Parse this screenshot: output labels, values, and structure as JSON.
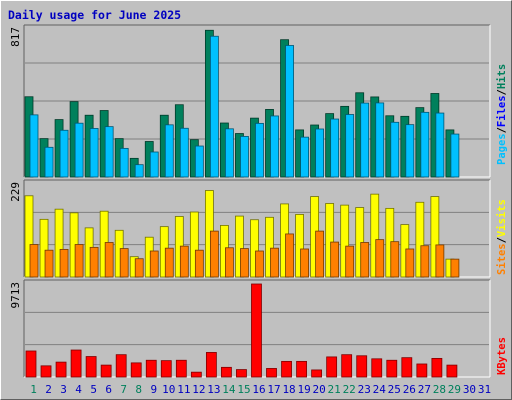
{
  "title": "Daily usage for June 2025",
  "colors": {
    "title": "#0000c0",
    "hits": "#00805c",
    "files": "#0000ff",
    "pages": "#00c0ff",
    "visits": "#ffff00",
    "sites": "#ff8000",
    "kbytes": "#ff0000",
    "weekend_label": "#00805c",
    "weekday_label": "#0000c0",
    "grid": "#808080"
  },
  "chart_data": [
    {
      "type": "bar",
      "panel": "hits",
      "ymax_label": "817",
      "ymax": 817,
      "legend": [
        {
          "name": "Pages",
          "color": "#00c0ff"
        },
        {
          "sep": "/"
        },
        {
          "name": "Files",
          "color": "#0000ff"
        },
        {
          "sep": "/"
        },
        {
          "name": "Hits",
          "color": "#00805c"
        }
      ],
      "categories": [
        "1",
        "2",
        "3",
        "4",
        "5",
        "6",
        "7",
        "8",
        "9",
        "10",
        "11",
        "12",
        "13",
        "14",
        "15",
        "16",
        "17",
        "18",
        "19",
        "20",
        "21",
        "22",
        "23",
        "24",
        "25",
        "26",
        "27",
        "28",
        "29",
        "30",
        "31"
      ],
      "series": [
        {
          "name": "Hits",
          "color": "#00805c",
          "values": [
            443,
            212,
            317,
            416,
            341,
            367,
            212,
            103,
            196,
            341,
            399,
            206,
            810,
            298,
            240,
            325,
            373,
            758,
            260,
            287,
            350,
            390,
            465,
            442,
            338,
            335,
            383,
            461,
            260,
            null,
            null
          ]
        },
        {
          "name": "Pages",
          "color": "#00c0ff",
          "values": [
            343,
            164,
            258,
            297,
            268,
            278,
            158,
            68,
            138,
            288,
            269,
            171,
            777,
            266,
            224,
            296,
            337,
            726,
            220,
            265,
            320,
            345,
            408,
            409,
            302,
            289,
            357,
            353,
            237,
            null,
            null
          ]
        }
      ]
    },
    {
      "type": "bar",
      "panel": "visits",
      "ymax_label": "229",
      "ymax": 229,
      "legend": [
        {
          "name": "Sites",
          "color": "#ff8000"
        },
        {
          "sep": "/"
        },
        {
          "name": "Visits",
          "color": "#ffff00"
        }
      ],
      "categories": [
        "1",
        "2",
        "3",
        "4",
        "5",
        "6",
        "7",
        "8",
        "9",
        "10",
        "11",
        "12",
        "13",
        "14",
        "15",
        "16",
        "17",
        "18",
        "19",
        "20",
        "21",
        "22",
        "23",
        "24",
        "25",
        "26",
        "27",
        "28",
        "29",
        "30",
        "31"
      ],
      "series": [
        {
          "name": "Visits",
          "color": "#ffff00",
          "values": [
            200,
            142,
            167,
            158,
            121,
            162,
            115,
            50,
            98,
            124,
            149,
            160,
            213,
            127,
            150,
            141,
            147,
            180,
            154,
            198,
            181,
            177,
            171,
            204,
            169,
            129,
            184,
            198,
            44,
            null,
            null
          ]
        },
        {
          "name": "Sites",
          "color": "#ff8000",
          "values": [
            80,
            66,
            68,
            80,
            73,
            85,
            70,
            45,
            64,
            71,
            76,
            66,
            113,
            72,
            70,
            64,
            71,
            106,
            69,
            113,
            86,
            76,
            85,
            92,
            87,
            69,
            77,
            79,
            44,
            null,
            null
          ]
        }
      ]
    },
    {
      "type": "bar",
      "panel": "kbytes",
      "ymax_label": "9713",
      "ymax": 9713,
      "legend": [
        {
          "name": "KBytes",
          "color": "#ff0000"
        }
      ],
      "categories": [
        "1",
        "2",
        "3",
        "4",
        "5",
        "6",
        "7",
        "8",
        "9",
        "10",
        "11",
        "12",
        "13",
        "14",
        "15",
        "16",
        "17",
        "18",
        "19",
        "20",
        "21",
        "22",
        "23",
        "24",
        "25",
        "26",
        "27",
        "28",
        "29",
        "30",
        "31"
      ],
      "series": [
        {
          "name": "KBytes",
          "color": "#ff0000",
          "values": [
            2717,
            1167,
            1555,
            2817,
            2138,
            1243,
            2332,
            1476,
            1749,
            1710,
            1749,
            505,
            2565,
            1010,
            777,
            9713,
            893,
            1632,
            1632,
            738,
            2099,
            2332,
            2218,
            1900,
            1749,
            2020,
            1360,
            1943,
            1243,
            null,
            null
          ]
        }
      ]
    }
  ],
  "x_labels": [
    {
      "text": "1",
      "weekend": true
    },
    {
      "text": "2",
      "weekend": false
    },
    {
      "text": "3",
      "weekend": false
    },
    {
      "text": "4",
      "weekend": false
    },
    {
      "text": "5",
      "weekend": false
    },
    {
      "text": "6",
      "weekend": false
    },
    {
      "text": "7",
      "weekend": true
    },
    {
      "text": "8",
      "weekend": true
    },
    {
      "text": "9",
      "weekend": false
    },
    {
      "text": "10",
      "weekend": false
    },
    {
      "text": "11",
      "weekend": false
    },
    {
      "text": "12",
      "weekend": false
    },
    {
      "text": "13",
      "weekend": false
    },
    {
      "text": "14",
      "weekend": true
    },
    {
      "text": "15",
      "weekend": true
    },
    {
      "text": "16",
      "weekend": false
    },
    {
      "text": "17",
      "weekend": false
    },
    {
      "text": "18",
      "weekend": false
    },
    {
      "text": "19",
      "weekend": false
    },
    {
      "text": "20",
      "weekend": false
    },
    {
      "text": "21",
      "weekend": true
    },
    {
      "text": "22",
      "weekend": true
    },
    {
      "text": "23",
      "weekend": false
    },
    {
      "text": "24",
      "weekend": false
    },
    {
      "text": "25",
      "weekend": false
    },
    {
      "text": "26",
      "weekend": false
    },
    {
      "text": "27",
      "weekend": false
    },
    {
      "text": "28",
      "weekend": true
    },
    {
      "text": "29",
      "weekend": true
    },
    {
      "text": "30",
      "weekend": false
    },
    {
      "text": "31",
      "weekend": false
    }
  ]
}
